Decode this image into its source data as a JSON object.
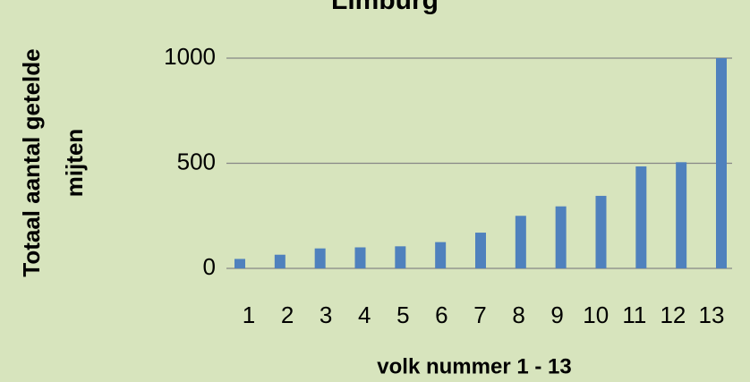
{
  "chart_data": {
    "type": "bar",
    "title": "Limburg",
    "x_label": "volk nummer 1 - 13",
    "y_label": [
      "Totaal aantal getelde",
      "mijten"
    ],
    "categories": [
      "1",
      "2",
      "3",
      "4",
      "5",
      "6",
      "7",
      "8",
      "9",
      "10",
      "11",
      "12",
      "13"
    ],
    "values": [
      45,
      65,
      95,
      100,
      105,
      125,
      170,
      250,
      295,
      345,
      485,
      505,
      1000
    ],
    "color": "#4f81bd",
    "ylim": [
      0,
      1000
    ],
    "yticks": [
      0,
      500,
      1000
    ],
    "grid": true
  }
}
